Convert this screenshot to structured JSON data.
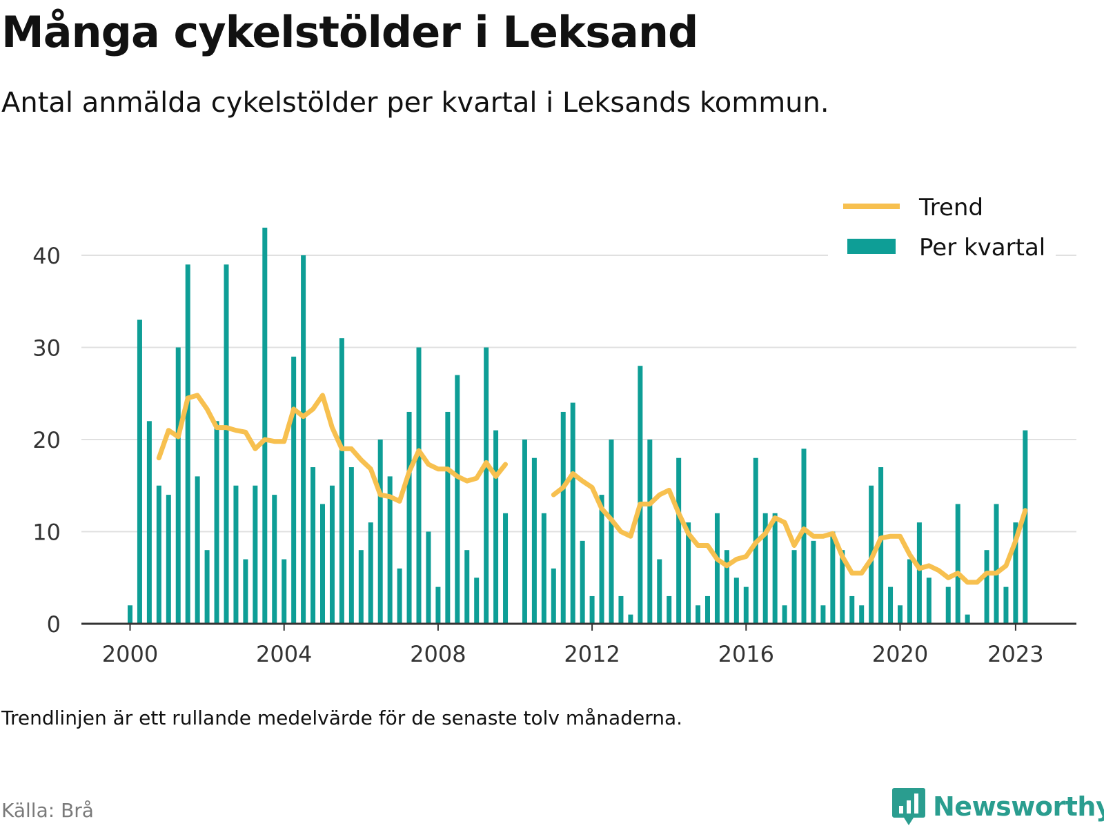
{
  "title": "Många cykelstölder i Leksand",
  "subtitle": "Antal anmälda cykelstölder per kvartal i Leksands kommun.",
  "note": "Trendlinjen är ett rullande medelvärde för de senaste tolv månaderna.",
  "source": "Källa: Brå",
  "brand": {
    "name": "Newsworthy",
    "icon": "newsworthy-chart-icon"
  },
  "colors": {
    "bars": "#0e9e96",
    "trend": "#f7c04f",
    "grid": "#e0e0e0",
    "axis": "#333333",
    "brand": "#2a9d8f"
  },
  "chart_data": {
    "type": "bar",
    "ylim": [
      0,
      45
    ],
    "yticks": [
      0,
      10,
      20,
      30,
      40
    ],
    "xticks": [
      "2000",
      "2004",
      "2008",
      "2012",
      "2016",
      "2020",
      "2023"
    ],
    "grid": true,
    "legend": "top-right",
    "x_start": "2000 Q1",
    "series": [
      {
        "name": "Per kvartal",
        "type": "bar",
        "values": [
          2,
          33,
          22,
          15,
          14,
          30,
          39,
          16,
          8,
          22,
          39,
          15,
          7,
          15,
          43,
          14,
          7,
          29,
          40,
          17,
          13,
          15,
          31,
          17,
          8,
          11,
          20,
          16,
          6,
          23,
          30,
          10,
          4,
          23,
          27,
          8,
          5,
          30,
          21,
          12,
          null,
          20,
          18,
          12,
          6,
          23,
          24,
          9,
          3,
          14,
          20,
          3,
          1,
          28,
          20,
          7,
          3,
          18,
          11,
          2,
          3,
          12,
          8,
          5,
          4,
          18,
          12,
          12,
          2,
          8,
          19,
          9,
          2,
          10,
          8,
          3,
          2,
          15,
          17,
          4,
          2,
          7,
          11,
          5,
          null,
          4,
          13,
          1,
          null,
          8,
          13,
          4,
          11,
          21
        ]
      },
      {
        "name": "Trend",
        "type": "line",
        "values": [
          null,
          null,
          null,
          18.0,
          21.0,
          20.3,
          24.5,
          24.8,
          23.3,
          21.3,
          21.3,
          21.0,
          20.8,
          19.0,
          20.0,
          19.8,
          19.8,
          23.3,
          22.5,
          23.3,
          24.8,
          21.3,
          19.0,
          19.0,
          17.8,
          16.8,
          14.0,
          13.8,
          13.3,
          16.5,
          18.8,
          17.3,
          16.8,
          16.8,
          16.0,
          15.5,
          15.8,
          17.5,
          16.0,
          17.3,
          null,
          null,
          null,
          null,
          14.0,
          14.8,
          16.3,
          15.5,
          14.8,
          12.5,
          11.3,
          10.0,
          9.5,
          13.0,
          13.0,
          14.0,
          14.5,
          12.0,
          9.8,
          8.5,
          8.5,
          7.0,
          6.3,
          7.0,
          7.3,
          8.8,
          9.8,
          11.5,
          11.0,
          8.5,
          10.3,
          9.5,
          9.5,
          9.8,
          7.3,
          5.5,
          5.5,
          7.0,
          9.3,
          9.5,
          9.5,
          7.5,
          6.0,
          6.3,
          5.8,
          5.0,
          5.5,
          4.5,
          4.5,
          5.5,
          5.5,
          6.3,
          9.0,
          12.3
        ]
      }
    ]
  }
}
